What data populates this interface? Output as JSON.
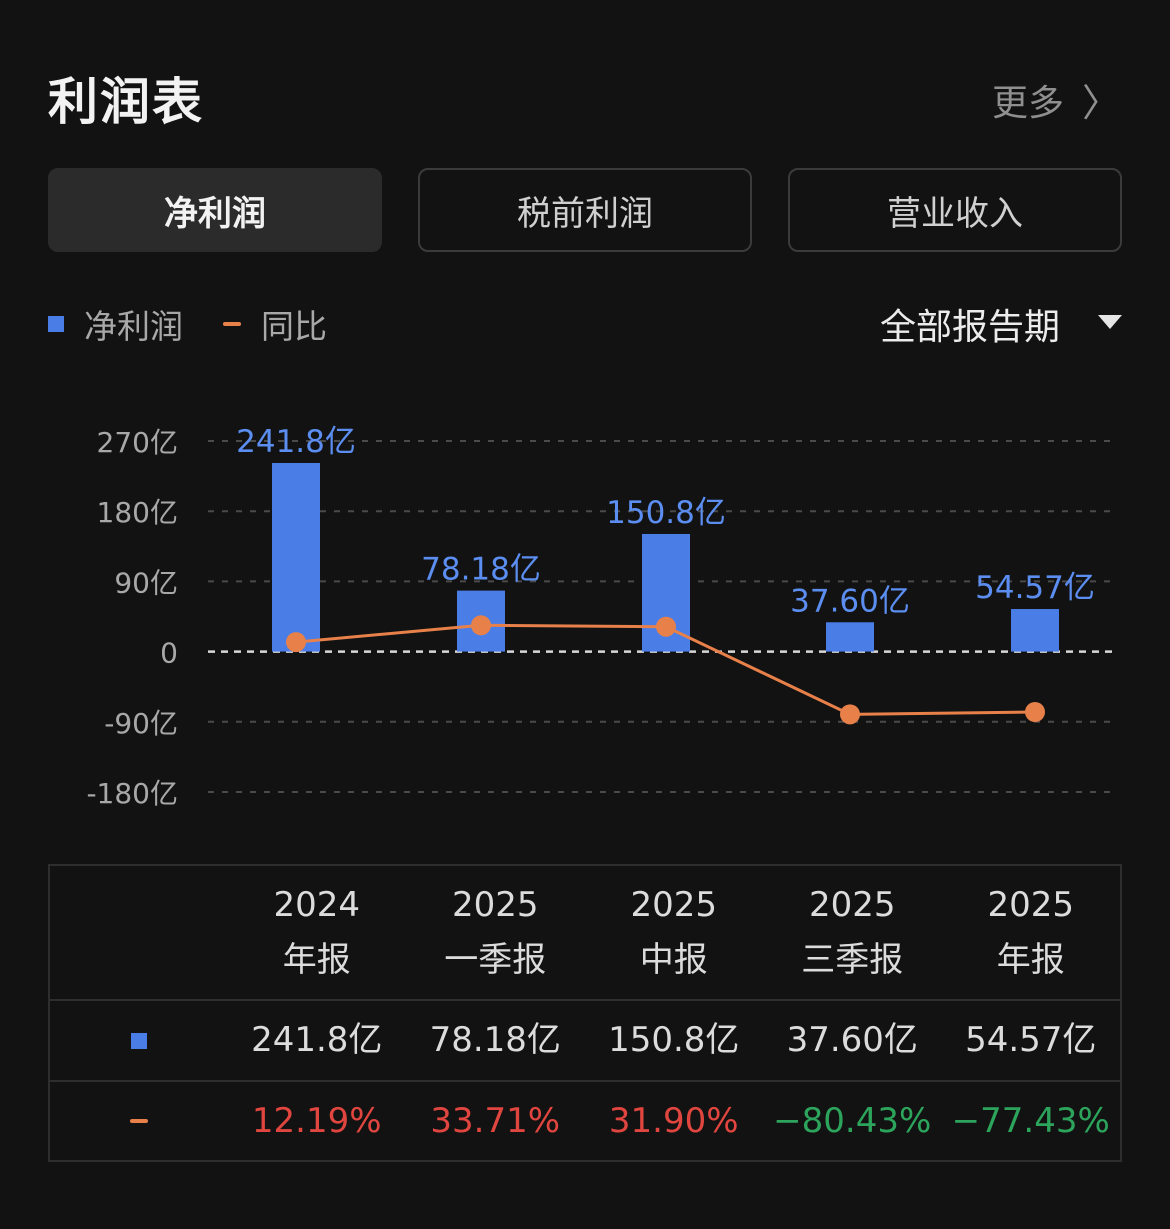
{
  "header": {
    "title": "利润表",
    "more_label": "更多"
  },
  "tabs": [
    {
      "label": "净利润",
      "active": true
    },
    {
      "label": "税前利润",
      "active": false
    },
    {
      "label": "营业收入",
      "active": false
    }
  ],
  "legend": {
    "bar_label": "净利润",
    "line_label": "同比"
  },
  "period_selector": {
    "label": "全部报告期"
  },
  "colors": {
    "bar": "#4a7ee6",
    "line": "#e8804a",
    "positive": "#e0463f",
    "negative": "#2ca45c"
  },
  "chart_data": {
    "type": "bar",
    "categories": [
      "2024 年报",
      "2025 一季报",
      "2025 中报",
      "2025 三季报",
      "2025 年报"
    ],
    "series": [
      {
        "name": "净利润",
        "type": "bar",
        "values": [
          241.8,
          78.18,
          150.8,
          37.6,
          54.57
        ],
        "labels": [
          "241.8亿",
          "78.18亿",
          "150.8亿",
          "37.60亿",
          "54.57亿"
        ]
      },
      {
        "name": "同比",
        "type": "line",
        "values": [
          12.19,
          33.71,
          31.9,
          -80.43,
          -77.43
        ]
      }
    ],
    "ylim": [
      -180,
      270
    ],
    "yticks": [
      270,
      180,
      90,
      0,
      -90,
      -180
    ],
    "ytick_labels": [
      "270亿",
      "180亿",
      "90亿",
      "0",
      "-90亿",
      "-180亿"
    ],
    "grid": true,
    "legend": "top-left"
  },
  "table": {
    "columns": [
      {
        "year": "2024",
        "period": "年报"
      },
      {
        "year": "2025",
        "period": "一季报"
      },
      {
        "year": "2025",
        "period": "中报"
      },
      {
        "year": "2025",
        "period": "三季报"
      },
      {
        "year": "2025",
        "period": "年报"
      }
    ],
    "values": [
      "241.8亿",
      "78.18亿",
      "150.8亿",
      "37.60亿",
      "54.57亿"
    ],
    "yoy": [
      "12.19%",
      "33.71%",
      "31.90%",
      "−80.43%",
      "−77.43%"
    ]
  }
}
